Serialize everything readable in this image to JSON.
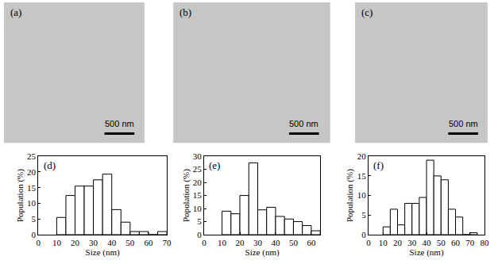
{
  "micrographs": [
    {
      "label": "(a)",
      "scale_bar": "500 nm"
    },
    {
      "label": "(b)",
      "scale_bar": "500 nm"
    },
    {
      "label": "(c)",
      "scale_bar": "500 nm"
    }
  ],
  "chart_data": [
    {
      "type": "histogram",
      "panel_label": "(d)",
      "x_label": "Size (nm)",
      "y_label": "Population (%)",
      "bins": [
        10,
        15,
        20,
        25,
        30,
        35,
        40,
        45,
        50,
        55,
        60,
        65,
        70
      ],
      "values": [
        5.5,
        12.5,
        15.5,
        15.5,
        17.5,
        19.3,
        8,
        4,
        1,
        1,
        0,
        1
      ],
      "xlim": [
        0,
        70
      ],
      "xticks": [
        0,
        10,
        20,
        30,
        40,
        50,
        60,
        70
      ],
      "ylim": [
        0,
        25
      ],
      "yticks": [
        0,
        5,
        10,
        15,
        20,
        25
      ],
      "color": "#ffffff",
      "grid": false
    },
    {
      "type": "histogram",
      "panel_label": "(e)",
      "x_label": "Size (nm)",
      "y_label": "Population (%)",
      "bins": [
        10,
        15,
        20,
        25,
        30,
        35,
        40,
        45,
        50,
        55,
        60,
        65
      ],
      "values": [
        9,
        8,
        15,
        27.5,
        9.5,
        10.5,
        7,
        6,
        5,
        3.5,
        1.5
      ],
      "xlim": [
        0,
        65
      ],
      "xticks": [
        0,
        10,
        20,
        30,
        40,
        50,
        60
      ],
      "ylim": [
        0,
        30
      ],
      "yticks": [
        0,
        5,
        10,
        15,
        20,
        25,
        30
      ],
      "color": "#ffffff",
      "grid": false
    },
    {
      "type": "histogram",
      "panel_label": "(f)",
      "x_label": "Size (nm)",
      "y_label": "Population (%)",
      "bins": [
        10,
        15,
        20,
        25,
        30,
        35,
        40,
        45,
        50,
        55,
        60,
        65,
        70,
        75
      ],
      "values": [
        2,
        6.5,
        2.5,
        8,
        8,
        9.5,
        19,
        15,
        14,
        6.5,
        4.5,
        0,
        0.5
      ],
      "xlim": [
        0,
        80
      ],
      "xticks": [
        0,
        10,
        20,
        30,
        40,
        50,
        60,
        70,
        80
      ],
      "ylim": [
        0,
        20
      ],
      "yticks": [
        0,
        5,
        10,
        15,
        20
      ],
      "color": "#ffffff",
      "grid": false
    }
  ]
}
